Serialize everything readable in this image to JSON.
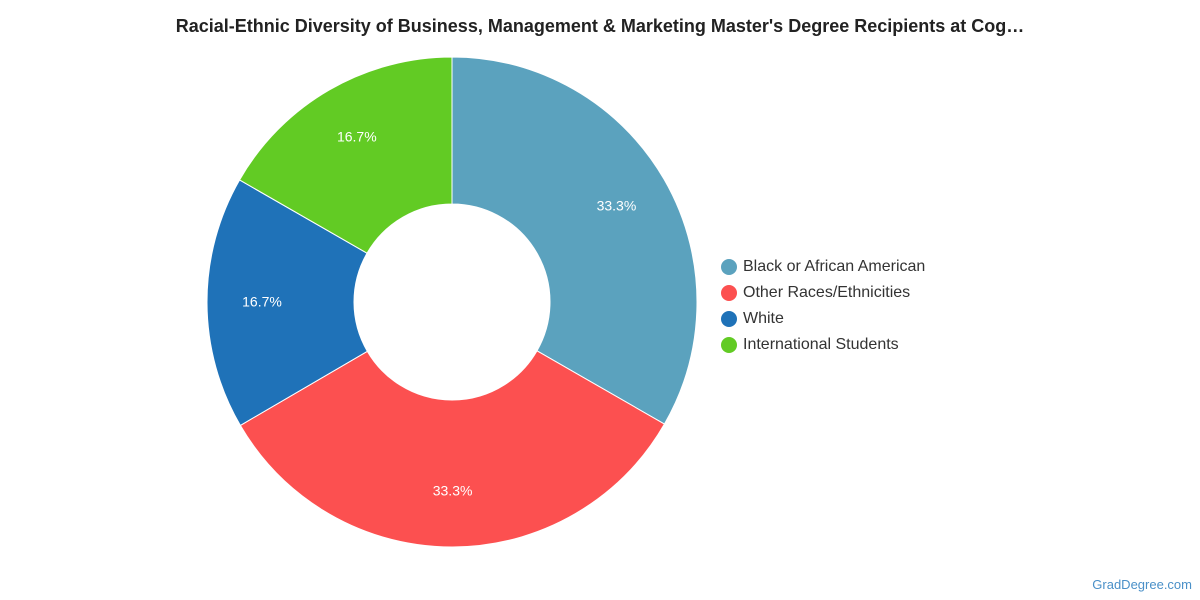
{
  "chart_data": {
    "type": "pie",
    "title": "Racial-Ethnic Diversity of Business, Management & Marketing Master's Degree Recipients at Cog…",
    "donut": true,
    "slices": [
      {
        "label": "Black or African American",
        "value": 33.3,
        "display": "33.3%",
        "color": "#5ba2be"
      },
      {
        "label": "Other Races/Ethnicities",
        "value": 33.3,
        "display": "33.3%",
        "color": "#fc5050"
      },
      {
        "label": "White",
        "value": 16.7,
        "display": "16.7%",
        "color": "#1f72b8"
      },
      {
        "label": "International Students",
        "value": 16.7,
        "display": "16.7%",
        "color": "#62cb24"
      }
    ],
    "legend_position": "right"
  },
  "credit": "GradDegree.com"
}
